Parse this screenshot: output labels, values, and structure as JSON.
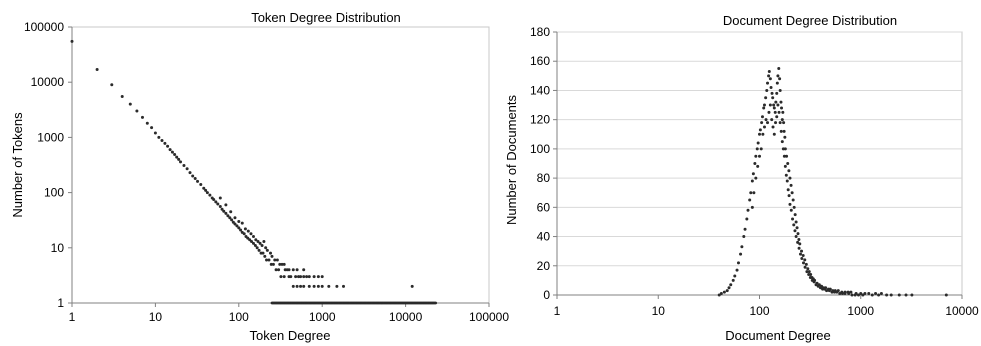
{
  "chart_data": [
    {
      "type": "scatter",
      "title": "Token Degree Distribution",
      "xlabel": "Token Degree",
      "ylabel": "Number of Tokens",
      "x_scale": "log",
      "y_scale": "log",
      "xlim": [
        1,
        100000
      ],
      "ylim": [
        1,
        100000
      ],
      "x_ticks": [
        "1",
        "10",
        "100",
        "1000",
        "10000",
        "100000"
      ],
      "y_ticks": [
        "1",
        "10",
        "100",
        "1000",
        "10000",
        "100000"
      ],
      "grid": false,
      "legend": "none",
      "marker_color": "#2b2b2b",
      "points": [
        [
          1,
          55000
        ],
        [
          2,
          17000
        ],
        [
          3,
          9000
        ],
        [
          4,
          5500
        ],
        [
          5,
          4000
        ],
        [
          6,
          3000
        ],
        [
          7,
          2300
        ],
        [
          8,
          1800
        ],
        [
          9,
          1500
        ],
        [
          10,
          1200
        ],
        [
          11,
          1000
        ],
        [
          12,
          880
        ],
        [
          13,
          780
        ],
        [
          14,
          690
        ],
        [
          15,
          600
        ],
        [
          16,
          540
        ],
        [
          17,
          490
        ],
        [
          18,
          440
        ],
        [
          19,
          400
        ],
        [
          20,
          360
        ],
        [
          22,
          310
        ],
        [
          24,
          270
        ],
        [
          26,
          230
        ],
        [
          28,
          200
        ],
        [
          30,
          180
        ],
        [
          32,
          160
        ],
        [
          35,
          140
        ],
        [
          38,
          120
        ],
        [
          40,
          110
        ],
        [
          42,
          100
        ],
        [
          45,
          90
        ],
        [
          48,
          80
        ],
        [
          50,
          75
        ],
        [
          53,
          68
        ],
        [
          56,
          62
        ],
        [
          60,
          56
        ],
        [
          63,
          50
        ],
        [
          66,
          46
        ],
        [
          70,
          42
        ],
        [
          74,
          38
        ],
        [
          78,
          35
        ],
        [
          82,
          32
        ],
        [
          86,
          29
        ],
        [
          90,
          27
        ],
        [
          95,
          25
        ],
        [
          100,
          23
        ],
        [
          105,
          21
        ],
        [
          110,
          19
        ],
        [
          116,
          18
        ],
        [
          122,
          16
        ],
        [
          128,
          15
        ],
        [
          135,
          14
        ],
        [
          142,
          13
        ],
        [
          150,
          12
        ],
        [
          158,
          11
        ],
        [
          166,
          10
        ],
        [
          175,
          9
        ],
        [
          185,
          8
        ],
        [
          195,
          8
        ],
        [
          205,
          7
        ],
        [
          215,
          6
        ],
        [
          230,
          6
        ],
        [
          245,
          5
        ],
        [
          260,
          5
        ],
        [
          280,
          4
        ],
        [
          300,
          4
        ],
        [
          320,
          3
        ],
        [
          350,
          3
        ],
        [
          400,
          3
        ],
        [
          450,
          2
        ],
        [
          500,
          2
        ],
        [
          550,
          2
        ],
        [
          600,
          2
        ],
        [
          700,
          2
        ],
        [
          800,
          2
        ],
        [
          900,
          2
        ],
        [
          1000,
          2
        ],
        [
          1200,
          2
        ],
        [
          1500,
          2
        ],
        [
          1800,
          2
        ],
        [
          12000,
          2
        ],
        [
          60,
          80
        ],
        [
          70,
          60
        ],
        [
          80,
          45
        ],
        [
          90,
          35
        ],
        [
          100,
          30
        ],
        [
          110,
          28
        ],
        [
          120,
          22
        ],
        [
          130,
          20
        ],
        [
          140,
          18
        ],
        [
          150,
          16
        ],
        [
          160,
          14
        ],
        [
          170,
          13
        ],
        [
          180,
          12
        ],
        [
          190,
          11
        ],
        [
          200,
          13
        ],
        [
          210,
          10
        ],
        [
          220,
          9
        ],
        [
          240,
          8
        ],
        [
          250,
          7
        ],
        [
          270,
          6
        ],
        [
          290,
          6
        ],
        [
          310,
          5
        ],
        [
          330,
          5
        ],
        [
          360,
          4
        ],
        [
          380,
          4
        ],
        [
          420,
          3
        ],
        [
          480,
          3
        ],
        [
          520,
          3
        ],
        [
          600,
          3
        ],
        [
          650,
          3
        ],
        [
          700,
          3
        ],
        [
          350,
          5
        ],
        [
          400,
          4
        ],
        [
          450,
          4
        ],
        [
          500,
          4
        ],
        [
          550,
          3
        ],
        [
          600,
          4
        ],
        [
          800,
          3
        ],
        [
          900,
          3
        ],
        [
          1000,
          3
        ]
      ],
      "floor_band": {
        "y": 1,
        "x_from": 250,
        "x_to": 23000
      }
    },
    {
      "type": "scatter",
      "title": "Document Degree Distribution",
      "xlabel": "Document Degree",
      "ylabel": "Number of Documents",
      "x_scale": "log",
      "y_scale": "linear",
      "xlim": [
        1,
        10000
      ],
      "ylim": [
        0,
        180
      ],
      "x_ticks": [
        "1",
        "10",
        "100",
        "1000",
        "10000"
      ],
      "y_ticks": [
        "0",
        "20",
        "40",
        "60",
        "80",
        "100",
        "120",
        "140",
        "160",
        "180"
      ],
      "grid": true,
      "legend": "none",
      "marker_color": "#2b2b2b",
      "points": [
        [
          40,
          0
        ],
        [
          42,
          1
        ],
        [
          45,
          2
        ],
        [
          48,
          3
        ],
        [
          50,
          5
        ],
        [
          52,
          7
        ],
        [
          55,
          10
        ],
        [
          57,
          13
        ],
        [
          60,
          17
        ],
        [
          62,
          22
        ],
        [
          65,
          28
        ],
        [
          67,
          33
        ],
        [
          70,
          40
        ],
        [
          72,
          45
        ],
        [
          75,
          52
        ],
        [
          77,
          58
        ],
        [
          80,
          65
        ],
        [
          82,
          70
        ],
        [
          85,
          78
        ],
        [
          87,
          83
        ],
        [
          90,
          90
        ],
        [
          92,
          95
        ],
        [
          95,
          100
        ],
        [
          97,
          104
        ],
        [
          100,
          110
        ],
        [
          102,
          113
        ],
        [
          105,
          118
        ],
        [
          107,
          122
        ],
        [
          110,
          128
        ],
        [
          112,
          130
        ],
        [
          115,
          135
        ],
        [
          118,
          140
        ],
        [
          120,
          145
        ],
        [
          123,
          150
        ],
        [
          125,
          153
        ],
        [
          128,
          148
        ],
        [
          130,
          142
        ],
        [
          133,
          138
        ],
        [
          135,
          135
        ],
        [
          138,
          130
        ],
        [
          140,
          128
        ],
        [
          143,
          125
        ],
        [
          145,
          132
        ],
        [
          148,
          138
        ],
        [
          150,
          145
        ],
        [
          152,
          150
        ],
        [
          155,
          155
        ],
        [
          158,
          148
        ],
        [
          160,
          140
        ],
        [
          163,
          132
        ],
        [
          165,
          128
        ],
        [
          168,
          120
        ],
        [
          170,
          125
        ],
        [
          173,
          118
        ],
        [
          175,
          112
        ],
        [
          178,
          108
        ],
        [
          180,
          100
        ],
        [
          185,
          95
        ],
        [
          190,
          90
        ],
        [
          195,
          85
        ],
        [
          200,
          80
        ],
        [
          205,
          75
        ],
        [
          210,
          70
        ],
        [
          215,
          65
        ],
        [
          220,
          60
        ],
        [
          225,
          55
        ],
        [
          230,
          50
        ],
        [
          235,
          46
        ],
        [
          240,
          42
        ],
        [
          245,
          38
        ],
        [
          250,
          35
        ],
        [
          260,
          30
        ],
        [
          270,
          27
        ],
        [
          280,
          24
        ],
        [
          290,
          21
        ],
        [
          300,
          18
        ],
        [
          310,
          16
        ],
        [
          320,
          14
        ],
        [
          330,
          12
        ],
        [
          340,
          11
        ],
        [
          350,
          10
        ],
        [
          370,
          8
        ],
        [
          390,
          7
        ],
        [
          410,
          6
        ],
        [
          430,
          5
        ],
        [
          450,
          5
        ],
        [
          480,
          4
        ],
        [
          500,
          4
        ],
        [
          530,
          3
        ],
        [
          560,
          3
        ],
        [
          600,
          3
        ],
        [
          650,
          2
        ],
        [
          700,
          2
        ],
        [
          750,
          2
        ],
        [
          800,
          2
        ],
        [
          900,
          1
        ],
        [
          1000,
          1
        ],
        [
          1100,
          1
        ],
        [
          1200,
          1
        ],
        [
          1400,
          1
        ],
        [
          1600,
          1
        ],
        [
          1800,
          0
        ],
        [
          2000,
          0
        ],
        [
          2400,
          0
        ],
        [
          2800,
          0
        ],
        [
          3200,
          0
        ],
        [
          7000,
          0
        ],
        [
          85,
          60
        ],
        [
          88,
          70
        ],
        [
          92,
          80
        ],
        [
          96,
          88
        ],
        [
          100,
          95
        ],
        [
          104,
          100
        ],
        [
          108,
          110
        ],
        [
          112,
          115
        ],
        [
          116,
          120
        ],
        [
          120,
          118
        ],
        [
          124,
          125
        ],
        [
          128,
          130
        ],
        [
          132,
          120
        ],
        [
          136,
          115
        ],
        [
          140,
          110
        ],
        [
          144,
          118
        ],
        [
          148,
          122
        ],
        [
          152,
          130
        ],
        [
          156,
          125
        ],
        [
          160,
          118
        ],
        [
          164,
          112
        ],
        [
          168,
          105
        ],
        [
          172,
          100
        ],
        [
          176,
          95
        ],
        [
          180,
          88
        ],
        [
          184,
          82
        ],
        [
          188,
          78
        ],
        [
          192,
          72
        ],
        [
          196,
          68
        ],
        [
          200,
          62
        ],
        [
          206,
          58
        ],
        [
          212,
          52
        ],
        [
          218,
          48
        ],
        [
          224,
          44
        ],
        [
          230,
          40
        ],
        [
          238,
          36
        ],
        [
          246,
          32
        ],
        [
          254,
          28
        ],
        [
          262,
          25
        ],
        [
          272,
          22
        ],
        [
          282,
          19
        ],
        [
          294,
          16
        ],
        [
          306,
          14
        ],
        [
          318,
          12
        ],
        [
          332,
          10
        ],
        [
          346,
          9
        ],
        [
          362,
          7
        ],
        [
          380,
          6
        ],
        [
          400,
          5
        ],
        [
          420,
          4
        ],
        [
          440,
          4
        ],
        [
          460,
          3
        ],
        [
          490,
          3
        ],
        [
          520,
          2
        ],
        [
          550,
          2
        ],
        [
          580,
          2
        ],
        [
          620,
          1
        ],
        [
          660,
          1
        ],
        [
          700,
          1
        ],
        [
          760,
          1
        ],
        [
          820,
          0
        ],
        [
          880,
          0
        ],
        [
          950,
          0
        ],
        [
          1050,
          0
        ],
        [
          1300,
          0
        ],
        [
          1500,
          0
        ]
      ]
    }
  ]
}
